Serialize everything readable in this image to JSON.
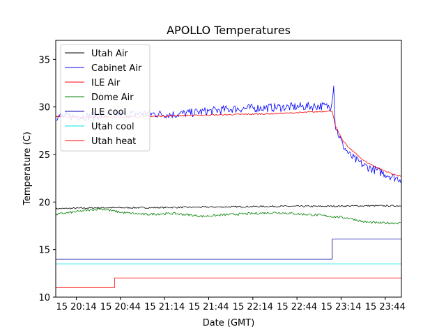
{
  "chart_data": {
    "type": "line",
    "title": "APOLLO Temperatures",
    "xlabel": "Date (GMT)",
    "ylabel": "Temperature (C)",
    "x_unit": "minutes since 20:00 GMT",
    "xlim": [
      0,
      235
    ],
    "ylim": [
      10,
      37
    ],
    "xticks": [
      {
        "value": 14,
        "label": "15 20:14"
      },
      {
        "value": 44,
        "label": "15 20:44"
      },
      {
        "value": 74,
        "label": "15 21:14"
      },
      {
        "value": 104,
        "label": "15 21:44"
      },
      {
        "value": 134,
        "label": "15 22:14"
      },
      {
        "value": 164,
        "label": "15 22:44"
      },
      {
        "value": 194,
        "label": "15 23:14"
      },
      {
        "value": 224,
        "label": "15 23:44"
      }
    ],
    "yticks": [
      10,
      15,
      20,
      25,
      30,
      35
    ],
    "grid": false,
    "legend_position": "top-left",
    "series": [
      {
        "name": "Utah Air",
        "color": "#000000",
        "style": "noisy",
        "noise": 0.08,
        "points": [
          [
            0,
            19.3
          ],
          [
            30,
            19.4
          ],
          [
            60,
            19.4
          ],
          [
            90,
            19.45
          ],
          [
            120,
            19.5
          ],
          [
            150,
            19.55
          ],
          [
            180,
            19.55
          ],
          [
            210,
            19.6
          ],
          [
            235,
            19.6
          ]
        ]
      },
      {
        "name": "Cabinet Air",
        "color": "#0000ff",
        "style": "noisy",
        "noise": 0.45,
        "points": [
          [
            0,
            29.0
          ],
          [
            20,
            29.0
          ],
          [
            40,
            29.2
          ],
          [
            60,
            29.3
          ],
          [
            80,
            29.2
          ],
          [
            100,
            29.5
          ],
          [
            120,
            29.8
          ],
          [
            140,
            29.9
          ],
          [
            160,
            30.0
          ],
          [
            180,
            30.1
          ],
          [
            187,
            30.0
          ],
          [
            189,
            32.2
          ],
          [
            190,
            28.0
          ],
          [
            195,
            26.0
          ],
          [
            200,
            24.9
          ],
          [
            205,
            24.3
          ],
          [
            210,
            23.8
          ],
          [
            220,
            23.2
          ],
          [
            230,
            22.6
          ],
          [
            235,
            22.4
          ]
        ]
      },
      {
        "name": "ILE Air",
        "color": "#ff0000",
        "style": "noisy",
        "noise": 0.07,
        "points": [
          [
            0,
            29.0
          ],
          [
            30,
            28.9
          ],
          [
            60,
            29.0
          ],
          [
            90,
            29.1
          ],
          [
            120,
            29.2
          ],
          [
            150,
            29.3
          ],
          [
            180,
            29.5
          ],
          [
            188,
            29.6
          ],
          [
            190,
            28.0
          ],
          [
            195,
            26.5
          ],
          [
            200,
            25.6
          ],
          [
            210,
            24.3
          ],
          [
            220,
            23.5
          ],
          [
            230,
            22.9
          ],
          [
            235,
            22.7
          ]
        ]
      },
      {
        "name": "Dome Air",
        "color": "#008000",
        "style": "noisy",
        "noise": 0.12,
        "points": [
          [
            0,
            18.7
          ],
          [
            15,
            19.0
          ],
          [
            30,
            19.3
          ],
          [
            45,
            18.9
          ],
          [
            60,
            18.7
          ],
          [
            80,
            18.8
          ],
          [
            100,
            18.5
          ],
          [
            120,
            18.7
          ],
          [
            150,
            18.9
          ],
          [
            180,
            18.6
          ],
          [
            200,
            18.3
          ],
          [
            210,
            17.9
          ],
          [
            220,
            17.8
          ],
          [
            235,
            17.8
          ]
        ]
      },
      {
        "name": "ILE cool",
        "color": "#0000aa",
        "style": "step",
        "points": [
          [
            0,
            14.0
          ],
          [
            188,
            14.0
          ],
          [
            188,
            16.1
          ],
          [
            235,
            16.1
          ]
        ]
      },
      {
        "name": "Utah cool",
        "color": "#00e5e5",
        "style": "step",
        "points": [
          [
            0,
            13.5
          ],
          [
            235,
            13.5
          ]
        ]
      },
      {
        "name": "Utah heat",
        "color": "#ff0000",
        "style": "step",
        "points": [
          [
            0,
            11.0
          ],
          [
            40,
            11.0
          ],
          [
            40,
            12.0
          ],
          [
            235,
            12.0
          ]
        ]
      }
    ]
  }
}
